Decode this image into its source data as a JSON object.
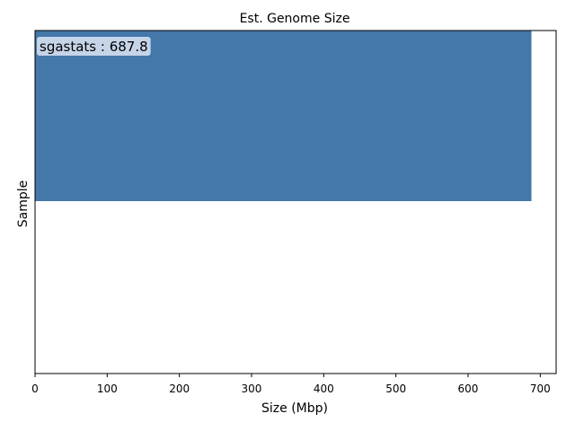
{
  "chart_data": {
    "type": "bar",
    "orientation": "horizontal",
    "title": "Est. Genome Size",
    "xlabel": "Size (Mbp)",
    "ylabel": "Sample",
    "categories": [
      "sgastats"
    ],
    "values": [
      687.8
    ],
    "data_labels": [
      "sgastats : 687.8"
    ],
    "xlim": [
      0,
      722
    ],
    "xticks": [
      0,
      100,
      200,
      300,
      400,
      500,
      600,
      700
    ],
    "xtick_labels": [
      "0",
      "100",
      "200",
      "300",
      "400",
      "500",
      "600",
      "700"
    ],
    "grid": false,
    "legend": "none",
    "colors": {
      "bar": "#4477aa",
      "label_box": "#c6d4e8",
      "axis": "#000000"
    }
  }
}
